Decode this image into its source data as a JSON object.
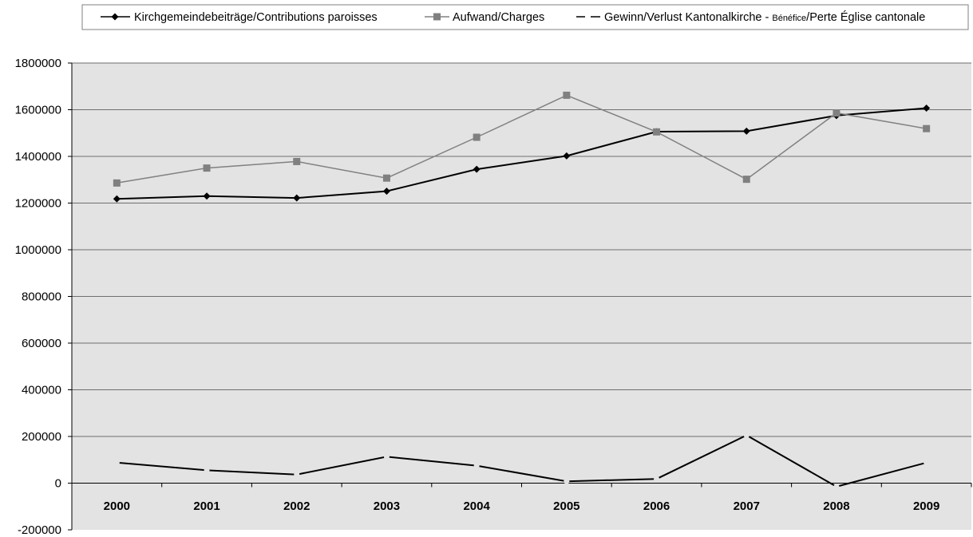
{
  "chart_data": {
    "type": "line",
    "categories": [
      "2000",
      "2001",
      "2002",
      "2003",
      "2004",
      "2005",
      "2006",
      "2007",
      "2008",
      "2009"
    ],
    "ylim": [
      -200000,
      1800000
    ],
    "yticks": [
      -200000,
      0,
      200000,
      400000,
      600000,
      800000,
      1000000,
      1200000,
      1400000,
      1600000,
      1800000
    ],
    "grid": true,
    "legend_position": "top",
    "series": [
      {
        "name": "Kirchgemeindebeiträge/Contributions paroisses",
        "color": "#000000",
        "marker": "diamond",
        "values": [
          1218000,
          1230000,
          1222000,
          1251000,
          1345000,
          1402000,
          1506000,
          1508000,
          1575000,
          1607000
        ]
      },
      {
        "name": "Aufwand/Charges",
        "color": "#808080",
        "marker": "square",
        "values": [
          1286000,
          1350000,
          1378000,
          1307000,
          1482000,
          1662000,
          1505000,
          1302000,
          1586000,
          1519000
        ]
      },
      {
        "name_parts": [
          "Gewinn/Verlust Kantonalkirche - ",
          "Bénéfice",
          "/Perte Église cantonale"
        ],
        "color": "#000000",
        "marker": "dash",
        "values": [
          88000,
          55000,
          37000,
          113000,
          75000,
          8000,
          18000,
          205000,
          -15000,
          88000
        ]
      }
    ]
  }
}
